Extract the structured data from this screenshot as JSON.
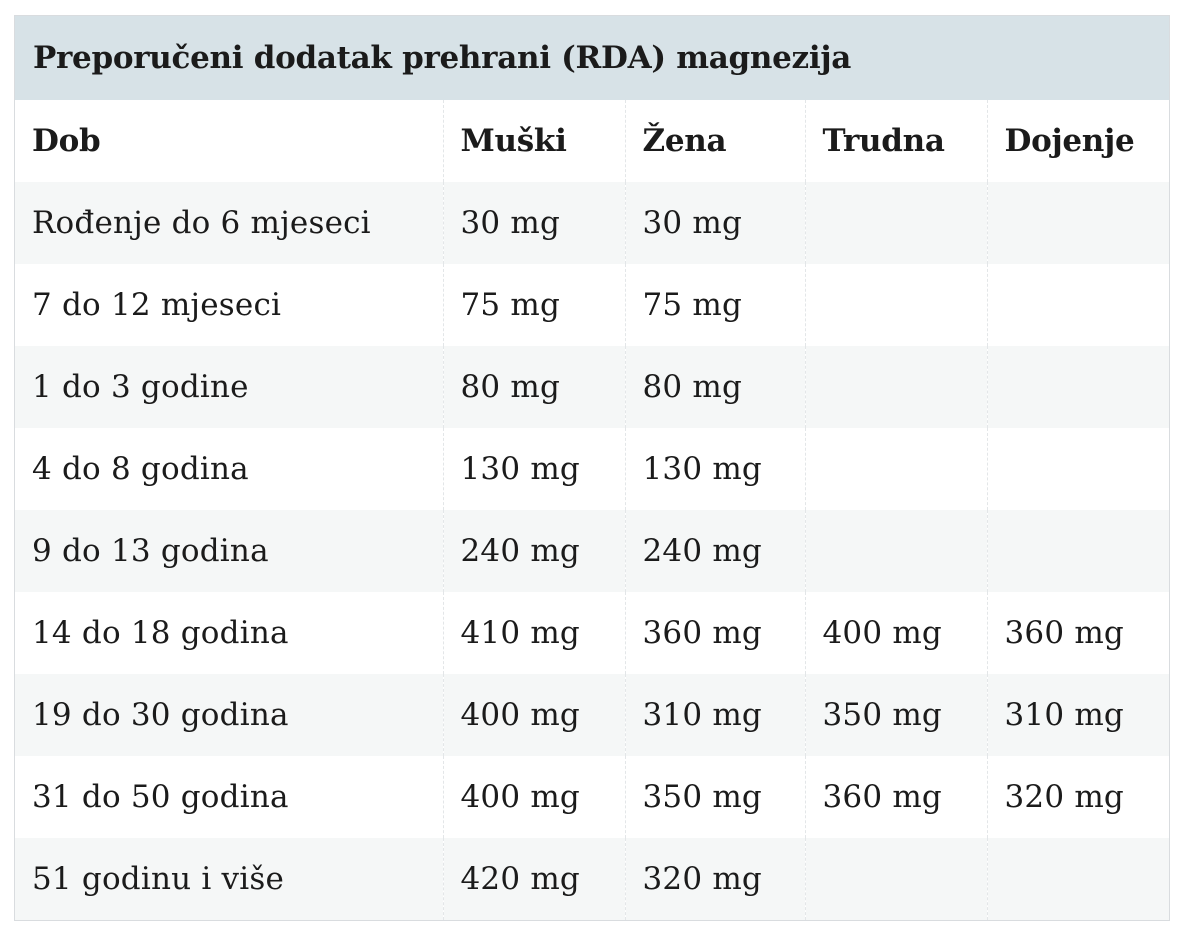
{
  "table": {
    "title": "Preporučeni dodatak prehrani (RDA) magnezija",
    "headers": [
      "Dob",
      "Muški",
      "Žena",
      "Trudna",
      "Dojenje"
    ],
    "rows": [
      [
        "Rođenje do 6 mjeseci",
        "30 mg",
        "30 mg",
        "",
        ""
      ],
      [
        "7 do 12 mjeseci",
        "75 mg",
        "75 mg",
        "",
        ""
      ],
      [
        "1 do 3 godine",
        "80 mg",
        "80 mg",
        "",
        ""
      ],
      [
        "4 do 8 godina",
        "130 mg",
        "130 mg",
        "",
        ""
      ],
      [
        "9 do 13 godina",
        "240 mg",
        "240 mg",
        "",
        ""
      ],
      [
        "14 do 18 godina",
        "410 mg",
        "360 mg",
        "400 mg",
        "360 mg"
      ],
      [
        "19 do 30 godina",
        "400 mg",
        "310 mg",
        "350 mg",
        "310 mg"
      ],
      [
        "31 do 50 godina",
        "400 mg",
        "350 mg",
        "360 mg",
        "320 mg"
      ],
      [
        "51 godinu i više",
        "420 mg",
        "320 mg",
        "",
        ""
      ]
    ]
  }
}
